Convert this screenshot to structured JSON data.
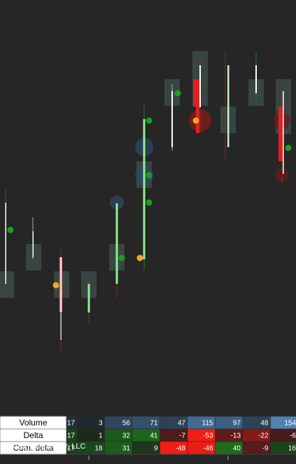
{
  "table": {
    "row_labels": [
      "Volume",
      "Delta",
      "Cum. delta"
    ],
    "rows": [
      [
        17,
        3,
        56,
        71,
        47,
        115,
        97,
        48,
        154
      ],
      [
        17,
        1,
        32,
        41,
        -7,
        -53,
        -13,
        -22,
        -6
      ],
      [
        17,
        18,
        31,
        9,
        -48,
        -46,
        40,
        -9,
        16
      ]
    ]
  },
  "footer": {
    "copyright": "© 2023 NinjaTrader, LLC"
  }
}
